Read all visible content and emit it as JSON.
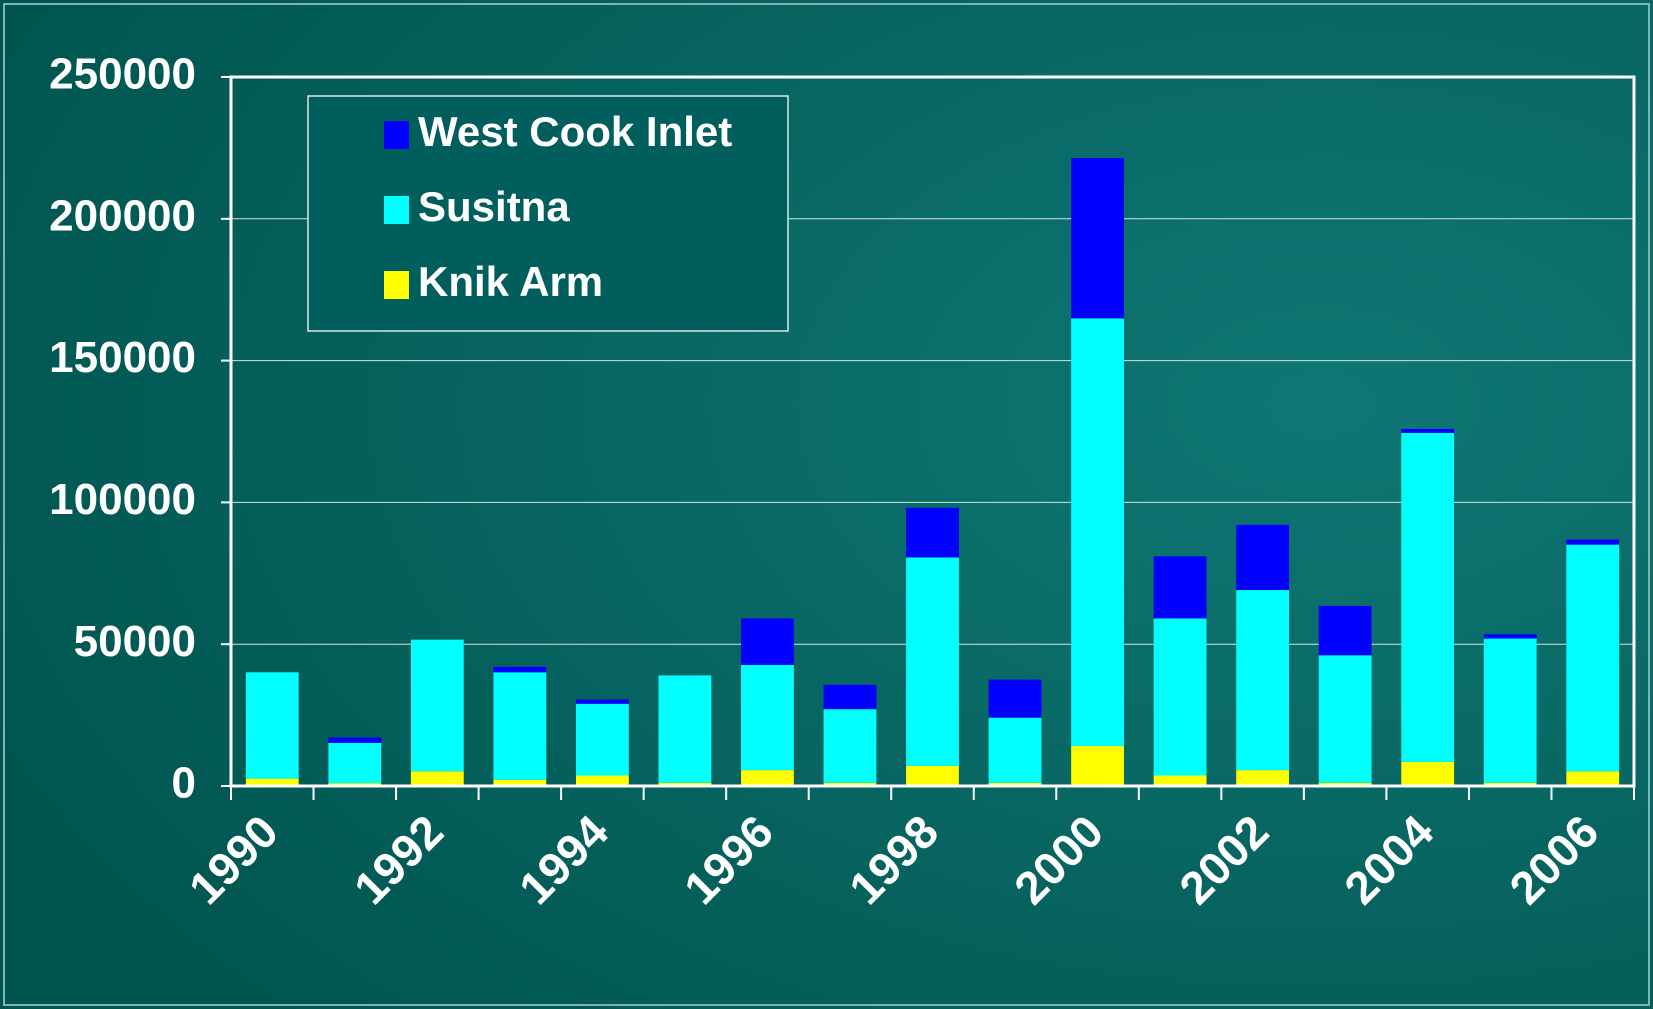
{
  "chart_data": {
    "type": "bar",
    "stacked": true,
    "categories": [
      "1990",
      null,
      "1992",
      null,
      "1994",
      null,
      "1996",
      null,
      "1998",
      null,
      "2000",
      null,
      "2002",
      null,
      "2004",
      null,
      "2006"
    ],
    "series": [
      {
        "name": "Knik Arm",
        "color": "#ffff00",
        "values": [
          2600,
          1000,
          5200,
          2200,
          3700,
          1100,
          5600,
          1100,
          7100,
          1100,
          14100,
          3700,
          5600,
          1100,
          8500,
          1100,
          5200
        ]
      },
      {
        "name": "Susitna",
        "color": "#00ffff",
        "values": [
          37500,
          14200,
          46400,
          37900,
          25300,
          37900,
          37100,
          26000,
          73500,
          23000,
          150800,
          55400,
          63500,
          45000,
          116000,
          50900,
          79900
        ]
      },
      {
        "name": "West Cook Inlet",
        "color": "#0000ff",
        "values": [
          0,
          1900,
          0,
          1900,
          1500,
          0,
          16400,
          8600,
          17500,
          13400,
          56500,
          21900,
          23000,
          17400,
          1400,
          1500,
          1800
        ]
      }
    ],
    "ylim": [
      0,
      250000
    ],
    "yticks": [
      0,
      50000,
      100000,
      150000,
      200000,
      250000
    ],
    "grid": true
  }
}
